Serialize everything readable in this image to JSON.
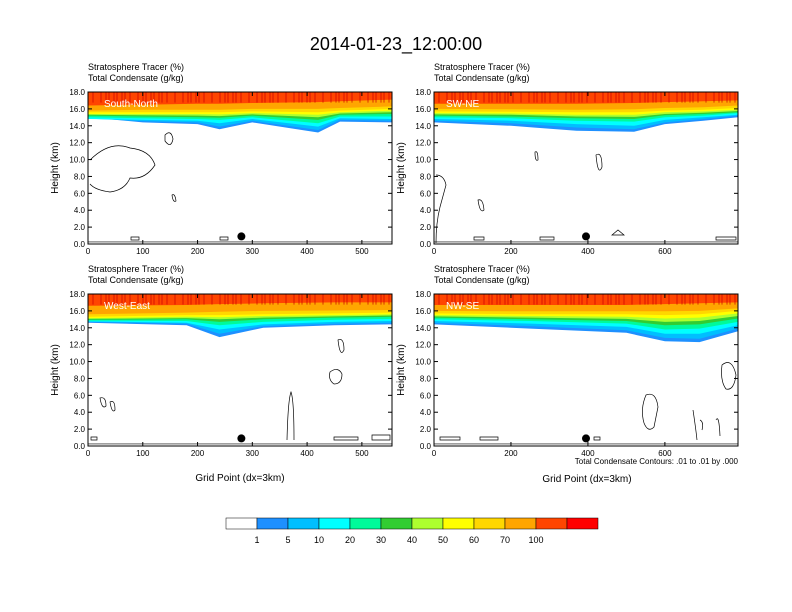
{
  "figure": {
    "title": "2014-01-23_12:00:00",
    "subtitle_line1": "Stratosphere Tracer   (%)",
    "subtitle_line2": "Total Condensate   (g/kg)",
    "ylabel": "Height (km)",
    "xlabel": "Grid Point (dx=3km)",
    "contour_note": "Total Condensate Contours: .01 to .01 by .000"
  },
  "chart_data": [
    {
      "type": "heatmap",
      "panel": "South-North",
      "title": "Stratosphere Tracer   (%)",
      "subtitle": "Total Condensate   (g/kg)",
      "ylabel": "Height (km)",
      "xlabel": "",
      "xlim": [
        0,
        555
      ],
      "ylim": [
        0,
        18
      ],
      "xticks": [
        0,
        100,
        200,
        300,
        400,
        500
      ],
      "yticks": [
        "0.0",
        "2.0",
        "4.0",
        "6.0",
        "8.0",
        "10.0",
        "12.0",
        "14.0",
        "16.0",
        "18.0"
      ],
      "marker_x": 280,
      "tracer_profile": [
        {
          "x": 0,
          "l1": 15.0,
          "l5": 14.85,
          "l10": 14.8,
          "l20": 15.0,
          "l30": 15.2,
          "l40": 15.3,
          "l50": 15.4,
          "l60": 15.6,
          "l70": 15.8,
          "l100": 16.4
        },
        {
          "x": 100,
          "l1": 14.4,
          "l5": 14.55,
          "l10": 14.7,
          "l20": 14.9,
          "l30": 15.1,
          "l40": 15.25,
          "l50": 15.4,
          "l60": 15.6,
          "l70": 15.9,
          "l100": 16.5
        },
        {
          "x": 200,
          "l1": 14.2,
          "l5": 14.4,
          "l10": 14.6,
          "l20": 14.8,
          "l30": 15.0,
          "l40": 15.2,
          "l50": 15.4,
          "l60": 15.6,
          "l70": 15.9,
          "l100": 16.6
        },
        {
          "x": 240,
          "l1": 13.6,
          "l5": 13.9,
          "l10": 14.3,
          "l20": 14.7,
          "l30": 14.95,
          "l40": 15.15,
          "l50": 15.35,
          "l60": 15.6,
          "l70": 15.9,
          "l100": 16.6
        },
        {
          "x": 300,
          "l1": 14.4,
          "l5": 14.6,
          "l10": 14.8,
          "l20": 15.0,
          "l30": 15.2,
          "l40": 15.35,
          "l50": 15.5,
          "l60": 15.7,
          "l70": 16.0,
          "l100": 16.7
        },
        {
          "x": 420,
          "l1": 13.2,
          "l5": 13.5,
          "l10": 13.9,
          "l20": 14.3,
          "l30": 14.7,
          "l40": 15.0,
          "l50": 15.3,
          "l60": 15.6,
          "l70": 16.0,
          "l100": 16.8
        },
        {
          "x": 460,
          "l1": 14.5,
          "l5": 14.7,
          "l10": 14.9,
          "l20": 15.1,
          "l30": 15.3,
          "l40": 15.45,
          "l50": 15.6,
          "l60": 15.8,
          "l70": 16.1,
          "l100": 16.9
        },
        {
          "x": 555,
          "l1": 14.4,
          "l5": 14.6,
          "l10": 14.8,
          "l20": 15.1,
          "l30": 15.4,
          "l40": 15.6,
          "l50": 15.8,
          "l60": 16.0,
          "l70": 16.3,
          "l100": 17.1
        }
      ]
    },
    {
      "type": "heatmap",
      "panel": "SW-NE",
      "title": "Stratosphere Tracer   (%)",
      "subtitle": "Total Condensate   (g/kg)",
      "ylabel": "Height (km)",
      "xlabel": "",
      "xlim": [
        0,
        790
      ],
      "ylim": [
        0,
        18
      ],
      "xticks": [
        0,
        200,
        400,
        600
      ],
      "yticks": [
        "0.0",
        "2.0",
        "4.0",
        "6.0",
        "8.0",
        "10.0",
        "12.0",
        "14.0",
        "16.0",
        "18.0"
      ],
      "marker_x": 395,
      "tracer_profile": [
        {
          "x": 0,
          "l1": 14.4,
          "l5": 14.6,
          "l10": 14.8,
          "l20": 15.0,
          "l30": 15.2,
          "l40": 15.35,
          "l50": 15.5,
          "l60": 15.7,
          "l70": 16.0,
          "l100": 16.6
        },
        {
          "x": 200,
          "l1": 14.0,
          "l5": 14.3,
          "l10": 14.6,
          "l20": 14.9,
          "l30": 15.1,
          "l40": 15.3,
          "l50": 15.45,
          "l60": 15.65,
          "l70": 15.95,
          "l100": 16.6
        },
        {
          "x": 370,
          "l1": 13.4,
          "l5": 13.8,
          "l10": 14.2,
          "l20": 14.6,
          "l30": 14.9,
          "l40": 15.1,
          "l50": 15.3,
          "l60": 15.6,
          "l70": 15.9,
          "l100": 16.6
        },
        {
          "x": 520,
          "l1": 13.3,
          "l5": 13.6,
          "l10": 14.0,
          "l20": 14.5,
          "l30": 14.8,
          "l40": 15.05,
          "l50": 15.3,
          "l60": 15.6,
          "l70": 15.95,
          "l100": 16.7
        },
        {
          "x": 600,
          "l1": 14.2,
          "l5": 14.4,
          "l10": 14.7,
          "l20": 15.0,
          "l30": 15.25,
          "l40": 15.4,
          "l50": 15.6,
          "l60": 15.8,
          "l70": 16.1,
          "l100": 16.8
        },
        {
          "x": 700,
          "l1": 14.6,
          "l5": 14.8,
          "l10": 15.0,
          "l20": 15.2,
          "l30": 15.4,
          "l40": 15.55,
          "l50": 15.7,
          "l60": 15.9,
          "l70": 16.2,
          "l100": 16.9
        },
        {
          "x": 790,
          "l1": 15.0,
          "l5": 15.2,
          "l10": 15.3,
          "l20": 15.5,
          "l30": 15.6,
          "l40": 15.75,
          "l50": 15.9,
          "l60": 16.1,
          "l70": 16.4,
          "l100": 17.0
        }
      ]
    },
    {
      "type": "heatmap",
      "panel": "West-East",
      "title": "Stratosphere Tracer   (%)",
      "subtitle": "Total Condensate   (g/kg)",
      "ylabel": "Height (km)",
      "xlabel": "Grid Point (dx=3km)",
      "xlim": [
        0,
        555
      ],
      "ylim": [
        0,
        18
      ],
      "xticks": [
        0,
        100,
        200,
        300,
        400,
        500
      ],
      "yticks": [
        "0.0",
        "2.0",
        "4.0",
        "6.0",
        "8.0",
        "10.0",
        "12.0",
        "14.0",
        "16.0",
        "18.0"
      ],
      "marker_x": 280,
      "tracer_profile": [
        {
          "x": 0,
          "l1": 14.6,
          "l5": 14.7,
          "l10": 14.75,
          "l20": 14.85,
          "l30": 14.95,
          "l40": 15.05,
          "l50": 15.15,
          "l60": 15.3,
          "l70": 15.6,
          "l100": 16.6
        },
        {
          "x": 180,
          "l1": 14.3,
          "l5": 14.5,
          "l10": 14.6,
          "l20": 14.8,
          "l30": 15.0,
          "l40": 15.15,
          "l50": 15.3,
          "l60": 15.5,
          "l70": 15.8,
          "l100": 16.7
        },
        {
          "x": 240,
          "l1": 12.9,
          "l5": 13.3,
          "l10": 13.8,
          "l20": 14.3,
          "l30": 14.7,
          "l40": 15.0,
          "l50": 15.25,
          "l60": 15.5,
          "l70": 15.9,
          "l100": 16.8
        },
        {
          "x": 320,
          "l1": 14.0,
          "l5": 14.2,
          "l10": 14.4,
          "l20": 14.7,
          "l30": 15.0,
          "l40": 15.2,
          "l50": 15.4,
          "l60": 15.6,
          "l70": 16.0,
          "l100": 16.9
        },
        {
          "x": 450,
          "l1": 14.3,
          "l5": 14.5,
          "l10": 14.7,
          "l20": 14.95,
          "l30": 15.2,
          "l40": 15.35,
          "l50": 15.5,
          "l60": 15.7,
          "l70": 16.05,
          "l100": 17.0
        },
        {
          "x": 555,
          "l1": 14.4,
          "l5": 14.6,
          "l10": 14.8,
          "l20": 15.05,
          "l30": 15.3,
          "l40": 15.45,
          "l50": 15.6,
          "l60": 15.8,
          "l70": 16.1,
          "l100": 17.0
        }
      ]
    },
    {
      "type": "heatmap",
      "panel": "NW-SE",
      "title": "Stratosphere Tracer   (%)",
      "subtitle": "Total Condensate   (g/kg)",
      "ylabel": "Height (km)",
      "xlabel": "Grid Point (dx=3km)",
      "xlim": [
        0,
        790
      ],
      "ylim": [
        0,
        18
      ],
      "xticks": [
        0,
        200,
        400,
        600
      ],
      "yticks": [
        "0.0",
        "2.0",
        "4.0",
        "6.0",
        "8.0",
        "10.0",
        "12.0",
        "14.0",
        "16.0",
        "18.0"
      ],
      "marker_x": 395,
      "tracer_profile": [
        {
          "x": 0,
          "l1": 14.4,
          "l5": 14.6,
          "l10": 14.8,
          "l20": 15.0,
          "l30": 15.2,
          "l40": 15.35,
          "l50": 15.5,
          "l60": 15.7,
          "l70": 16.0,
          "l100": 16.7
        },
        {
          "x": 250,
          "l1": 13.9,
          "l5": 14.2,
          "l10": 14.5,
          "l20": 14.8,
          "l30": 15.0,
          "l40": 15.2,
          "l50": 15.4,
          "l60": 15.6,
          "l70": 15.95,
          "l100": 16.7
        },
        {
          "x": 500,
          "l1": 13.4,
          "l5": 13.7,
          "l10": 14.1,
          "l20": 14.5,
          "l30": 14.8,
          "l40": 15.05,
          "l50": 15.3,
          "l60": 15.6,
          "l70": 15.95,
          "l100": 16.7
        },
        {
          "x": 600,
          "l1": 12.4,
          "l5": 12.8,
          "l10": 13.3,
          "l20": 13.8,
          "l30": 14.3,
          "l40": 14.7,
          "l50": 15.1,
          "l60": 15.5,
          "l70": 15.95,
          "l100": 16.8
        },
        {
          "x": 690,
          "l1": 12.3,
          "l5": 12.7,
          "l10": 13.3,
          "l20": 13.9,
          "l30": 14.4,
          "l40": 14.8,
          "l50": 15.2,
          "l60": 15.6,
          "l70": 16.0,
          "l100": 16.9
        },
        {
          "x": 790,
          "l1": 13.6,
          "l5": 13.9,
          "l10": 14.3,
          "l20": 14.7,
          "l30": 15.1,
          "l40": 15.4,
          "l50": 15.7,
          "l60": 16.0,
          "l70": 16.3,
          "l100": 17.0
        }
      ]
    }
  ],
  "colorbar": {
    "labels": [
      "1",
      "5",
      "10",
      "20",
      "30",
      "40",
      "50",
      "60",
      "70",
      "100"
    ],
    "colors": [
      "#ffffff",
      "#1e90ff",
      "#00bfff",
      "#00ffff",
      "#00fa9a",
      "#32cd32",
      "#adff2f",
      "#ffff00",
      "#ffd700",
      "#ffa500",
      "#ff4500",
      "#ff0000"
    ]
  }
}
